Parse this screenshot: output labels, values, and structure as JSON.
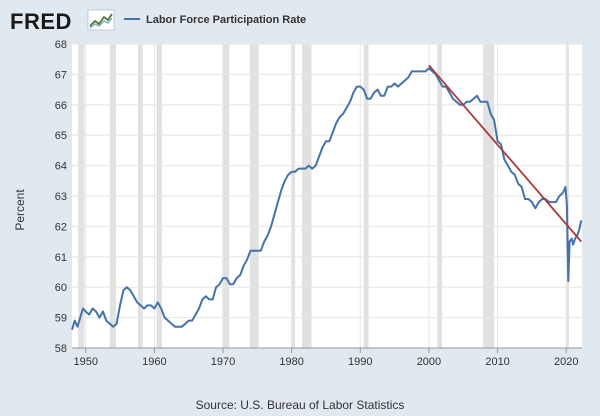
{
  "logo": {
    "text": "FRED",
    "icon": "fred-chart-logo-icon"
  },
  "legend": {
    "label": "Labor Force Participation Rate",
    "color": "#4572a7"
  },
  "source": "Source: U.S. Bureau of Labor Statistics",
  "chart_data": {
    "type": "line",
    "title": "",
    "xlabel": "",
    "ylabel": "Percent",
    "xlim": [
      1948,
      2022.3
    ],
    "ylim": [
      58,
      68
    ],
    "x_ticks": [
      1950,
      1960,
      1970,
      1980,
      1990,
      2000,
      2010,
      2020
    ],
    "y_ticks": [
      58,
      59,
      60,
      61,
      62,
      63,
      64,
      65,
      66,
      67,
      68
    ],
    "grid": true,
    "legend_position": "top-left",
    "recessions": [
      [
        1948.9,
        1949.8
      ],
      [
        1953.5,
        1954.4
      ],
      [
        1957.6,
        1958.3
      ],
      [
        1960.3,
        1961.1
      ],
      [
        1969.9,
        1970.9
      ],
      [
        1973.9,
        1975.2
      ],
      [
        1980.0,
        1980.5
      ],
      [
        1981.5,
        1982.9
      ],
      [
        1990.5,
        1991.2
      ],
      [
        2001.2,
        2001.9
      ],
      [
        2007.9,
        2009.5
      ],
      [
        2020.1,
        2020.3
      ]
    ],
    "series": [
      {
        "name": "Labor Force Participation Rate",
        "color": "#4572a7",
        "points": [
          [
            1948.0,
            58.6
          ],
          [
            1948.4,
            58.9
          ],
          [
            1948.8,
            58.7
          ],
          [
            1949.2,
            59.0
          ],
          [
            1949.6,
            59.3
          ],
          [
            1950.0,
            59.2
          ],
          [
            1950.5,
            59.1
          ],
          [
            1951.0,
            59.3
          ],
          [
            1951.5,
            59.2
          ],
          [
            1952.0,
            59.0
          ],
          [
            1952.5,
            59.2
          ],
          [
            1953.0,
            58.9
          ],
          [
            1953.5,
            58.8
          ],
          [
            1954.0,
            58.7
          ],
          [
            1954.5,
            58.8
          ],
          [
            1955.0,
            59.4
          ],
          [
            1955.5,
            59.9
          ],
          [
            1956.0,
            60.0
          ],
          [
            1956.5,
            59.9
          ],
          [
            1957.0,
            59.7
          ],
          [
            1957.5,
            59.5
          ],
          [
            1958.0,
            59.4
          ],
          [
            1958.5,
            59.3
          ],
          [
            1959.0,
            59.4
          ],
          [
            1959.5,
            59.4
          ],
          [
            1960.0,
            59.3
          ],
          [
            1960.5,
            59.5
          ],
          [
            1961.0,
            59.3
          ],
          [
            1961.5,
            59.0
          ],
          [
            1962.0,
            58.9
          ],
          [
            1962.5,
            58.8
          ],
          [
            1963.0,
            58.7
          ],
          [
            1963.5,
            58.7
          ],
          [
            1964.0,
            58.7
          ],
          [
            1964.5,
            58.8
          ],
          [
            1965.0,
            58.9
          ],
          [
            1965.5,
            58.9
          ],
          [
            1966.0,
            59.1
          ],
          [
            1966.5,
            59.3
          ],
          [
            1967.0,
            59.6
          ],
          [
            1967.5,
            59.7
          ],
          [
            1968.0,
            59.6
          ],
          [
            1968.5,
            59.6
          ],
          [
            1969.0,
            60.0
          ],
          [
            1969.5,
            60.1
          ],
          [
            1970.0,
            60.3
          ],
          [
            1970.5,
            60.3
          ],
          [
            1971.0,
            60.1
          ],
          [
            1971.5,
            60.1
          ],
          [
            1972.0,
            60.3
          ],
          [
            1972.5,
            60.4
          ],
          [
            1973.0,
            60.7
          ],
          [
            1973.5,
            60.9
          ],
          [
            1974.0,
            61.2
          ],
          [
            1974.5,
            61.2
          ],
          [
            1975.0,
            61.2
          ],
          [
            1975.5,
            61.2
          ],
          [
            1976.0,
            61.5
          ],
          [
            1976.5,
            61.7
          ],
          [
            1977.0,
            62.0
          ],
          [
            1977.5,
            62.4
          ],
          [
            1978.0,
            62.8
          ],
          [
            1978.5,
            63.2
          ],
          [
            1979.0,
            63.5
          ],
          [
            1979.5,
            63.7
          ],
          [
            1980.0,
            63.8
          ],
          [
            1980.5,
            63.8
          ],
          [
            1981.0,
            63.9
          ],
          [
            1981.5,
            63.9
          ],
          [
            1982.0,
            63.9
          ],
          [
            1982.5,
            64.0
          ],
          [
            1983.0,
            63.9
          ],
          [
            1983.5,
            64.0
          ],
          [
            1984.0,
            64.3
          ],
          [
            1984.5,
            64.6
          ],
          [
            1985.0,
            64.8
          ],
          [
            1985.5,
            64.8
          ],
          [
            1986.0,
            65.1
          ],
          [
            1986.5,
            65.4
          ],
          [
            1987.0,
            65.6
          ],
          [
            1987.5,
            65.7
          ],
          [
            1988.0,
            65.9
          ],
          [
            1988.5,
            66.1
          ],
          [
            1989.0,
            66.4
          ],
          [
            1989.5,
            66.6
          ],
          [
            1990.0,
            66.6
          ],
          [
            1990.5,
            66.5
          ],
          [
            1991.0,
            66.2
          ],
          [
            1991.5,
            66.2
          ],
          [
            1992.0,
            66.4
          ],
          [
            1992.5,
            66.5
          ],
          [
            1993.0,
            66.3
          ],
          [
            1993.5,
            66.3
          ],
          [
            1994.0,
            66.6
          ],
          [
            1994.5,
            66.6
          ],
          [
            1995.0,
            66.7
          ],
          [
            1995.5,
            66.6
          ],
          [
            1996.0,
            66.7
          ],
          [
            1996.5,
            66.8
          ],
          [
            1997.0,
            66.9
          ],
          [
            1997.5,
            67.1
          ],
          [
            1998.0,
            67.1
          ],
          [
            1998.5,
            67.1
          ],
          [
            1999.0,
            67.1
          ],
          [
            1999.5,
            67.1
          ],
          [
            2000.0,
            67.2
          ],
          [
            2000.5,
            67.1
          ],
          [
            2001.0,
            67.0
          ],
          [
            2001.5,
            66.8
          ],
          [
            2002.0,
            66.6
          ],
          [
            2002.5,
            66.6
          ],
          [
            2003.0,
            66.4
          ],
          [
            2003.5,
            66.2
          ],
          [
            2004.0,
            66.1
          ],
          [
            2004.5,
            66.0
          ],
          [
            2005.0,
            66.0
          ],
          [
            2005.5,
            66.1
          ],
          [
            2006.0,
            66.1
          ],
          [
            2006.5,
            66.2
          ],
          [
            2007.0,
            66.3
          ],
          [
            2007.5,
            66.1
          ],
          [
            2008.0,
            66.1
          ],
          [
            2008.5,
            66.1
          ],
          [
            2009.0,
            65.7
          ],
          [
            2009.5,
            65.5
          ],
          [
            2010.0,
            64.8
          ],
          [
            2010.5,
            64.7
          ],
          [
            2011.0,
            64.2
          ],
          [
            2011.5,
            64.0
          ],
          [
            2012.0,
            63.8
          ],
          [
            2012.5,
            63.7
          ],
          [
            2013.0,
            63.4
          ],
          [
            2013.5,
            63.3
          ],
          [
            2014.0,
            62.9
          ],
          [
            2014.5,
            62.9
          ],
          [
            2015.0,
            62.8
          ],
          [
            2015.5,
            62.6
          ],
          [
            2016.0,
            62.8
          ],
          [
            2016.5,
            62.9
          ],
          [
            2017.0,
            62.9
          ],
          [
            2017.5,
            62.8
          ],
          [
            2018.0,
            62.8
          ],
          [
            2018.5,
            62.8
          ],
          [
            2019.0,
            63.0
          ],
          [
            2019.5,
            63.1
          ],
          [
            2019.9,
            63.3
          ],
          [
            2020.1,
            62.7
          ],
          [
            2020.3,
            60.2
          ],
          [
            2020.5,
            61.5
          ],
          [
            2020.8,
            61.6
          ],
          [
            2021.0,
            61.4
          ],
          [
            2021.3,
            61.6
          ],
          [
            2021.6,
            61.7
          ],
          [
            2021.9,
            61.9
          ],
          [
            2022.2,
            62.2
          ]
        ]
      },
      {
        "name": "",
        "color": "#aa3b3b",
        "points": [
          [
            2000.0,
            67.3
          ],
          [
            2022.2,
            61.5
          ]
        ]
      }
    ]
  }
}
